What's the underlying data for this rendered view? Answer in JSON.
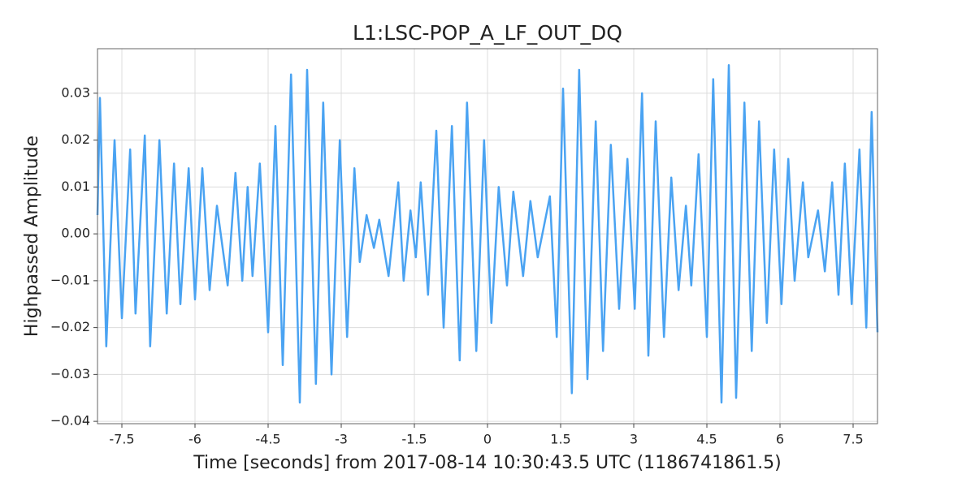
{
  "chart_data": {
    "type": "line",
    "title": "L1:LSC-POP_A_LF_OUT_DQ",
    "x_label": "Time [seconds] from 2017-08-14 10:30:43.5 UTC (1186741861.5)",
    "y_label": "Highpassed Amplitude",
    "x": [
      -8.0,
      -7.95,
      -7.82,
      -7.65,
      -7.5,
      -7.33,
      -7.22,
      -7.03,
      -6.92,
      -6.73,
      -6.58,
      -6.43,
      -6.3,
      -6.13,
      -6.0,
      -5.85,
      -5.7,
      -5.55,
      -5.33,
      -5.17,
      -5.03,
      -4.92,
      -4.82,
      -4.67,
      -4.5,
      -4.35,
      -4.2,
      -4.03,
      -3.85,
      -3.7,
      -3.52,
      -3.37,
      -3.2,
      -3.03,
      -2.88,
      -2.73,
      -2.62,
      -2.48,
      -2.33,
      -2.22,
      -2.03,
      -1.83,
      -1.72,
      -1.58,
      -1.47,
      -1.37,
      -1.22,
      -1.05,
      -0.9,
      -0.73,
      -0.57,
      -0.42,
      -0.23,
      -0.07,
      0.08,
      0.23,
      0.4,
      0.53,
      0.73,
      0.88,
      1.03,
      1.28,
      1.42,
      1.55,
      1.73,
      1.88,
      2.05,
      2.22,
      2.37,
      2.53,
      2.7,
      2.87,
      3.02,
      3.17,
      3.3,
      3.45,
      3.62,
      3.77,
      3.92,
      4.07,
      4.18,
      4.33,
      4.5,
      4.63,
      4.8,
      4.95,
      5.1,
      5.27,
      5.42,
      5.57,
      5.73,
      5.88,
      6.03,
      6.17,
      6.3,
      6.47,
      6.58,
      6.78,
      6.92,
      7.07,
      7.2,
      7.33,
      7.47,
      7.63,
      7.77,
      7.88,
      8.0
    ],
    "series": [
      {
        "color": "#4aa3f2",
        "values": [
          0.004,
          0.029,
          -0.024,
          0.02,
          -0.018,
          0.018,
          -0.017,
          0.021,
          -0.024,
          0.02,
          -0.017,
          0.015,
          -0.015,
          0.014,
          -0.014,
          0.014,
          -0.012,
          0.006,
          -0.011,
          0.013,
          -0.01,
          0.01,
          -0.009,
          0.015,
          -0.021,
          0.023,
          -0.028,
          0.034,
          -0.036,
          0.035,
          -0.032,
          0.028,
          -0.03,
          0.02,
          -0.022,
          0.014,
          -0.006,
          0.004,
          -0.003,
          0.003,
          -0.009,
          0.011,
          -0.01,
          0.005,
          -0.005,
          0.011,
          -0.013,
          0.022,
          -0.02,
          0.023,
          -0.027,
          0.028,
          -0.025,
          0.02,
          -0.019,
          0.01,
          -0.011,
          0.009,
          -0.009,
          0.007,
          -0.005,
          0.008,
          -0.022,
          0.031,
          -0.034,
          0.035,
          -0.031,
          0.024,
          -0.025,
          0.019,
          -0.016,
          0.016,
          -0.016,
          0.03,
          -0.026,
          0.024,
          -0.022,
          0.012,
          -0.012,
          0.006,
          -0.011,
          0.017,
          -0.022,
          0.033,
          -0.036,
          0.036,
          -0.035,
          0.028,
          -0.025,
          0.024,
          -0.019,
          0.018,
          -0.015,
          0.016,
          -0.01,
          0.011,
          -0.005,
          0.005,
          -0.008,
          0.011,
          -0.013,
          0.015,
          -0.015,
          0.018,
          -0.02,
          0.026,
          -0.021
        ]
      }
    ],
    "xlim": [
      -8,
      8
    ],
    "ylim": [
      -0.0405,
      0.0395
    ],
    "xticks": [
      -7.5,
      -6,
      -4.5,
      -3,
      -1.5,
      0,
      1.5,
      3,
      4.5,
      6,
      7.5
    ],
    "yticks": [
      {
        "value": -0.04,
        "label": "−0.04"
      },
      {
        "value": -0.03,
        "label": "−0.03"
      },
      {
        "value": -0.02,
        "label": "−0.02"
      },
      {
        "value": -0.01,
        "label": "−0.01"
      },
      {
        "value": 0,
        "label": "0.00"
      },
      {
        "value": 0.01,
        "label": "0.01"
      },
      {
        "value": 0.02,
        "label": "0.02"
      },
      {
        "value": 0.03,
        "label": "0.03"
      }
    ],
    "grid": true
  }
}
